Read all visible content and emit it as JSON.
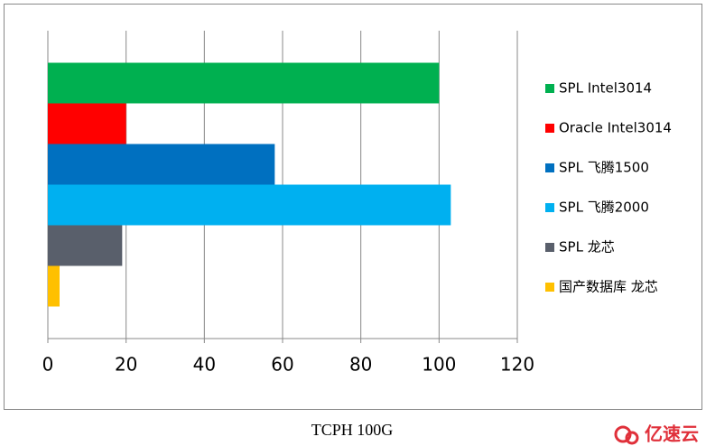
{
  "chart_data": {
    "type": "bar",
    "orientation": "horizontal",
    "title": "TCPH 100G",
    "series": [
      {
        "name": "SPL Intel3014",
        "color": "#00b050",
        "values": [
          100
        ]
      },
      {
        "name": "Oracle Intel3014",
        "color": "#ff0000",
        "values": [
          20
        ]
      },
      {
        "name": "SPL 飞腾1500",
        "color": "#0070c0",
        "values": [
          58
        ]
      },
      {
        "name": "SPL 飞腾2000",
        "color": "#00b0f0",
        "values": [
          103
        ]
      },
      {
        "name": "SPL 龙芯",
        "color": "#595f6b",
        "values": [
          19
        ]
      },
      {
        "name": "国产数据库 龙芯",
        "color": "#ffc000",
        "values": [
          3
        ]
      }
    ],
    "xlim": [
      0,
      120
    ],
    "xticks": [
      0,
      20,
      40,
      60,
      80,
      100,
      120
    ],
    "grid": true,
    "legend": "right"
  },
  "watermark": "亿速云"
}
